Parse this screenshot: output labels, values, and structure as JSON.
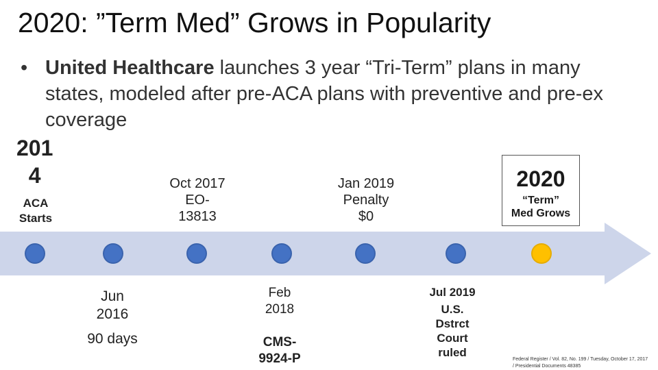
{
  "title": "2020: ”Term Med” Grows in Popularity",
  "bullet": {
    "bold": "United Healthcare",
    "rest": " launches 3 year “Tri-Term” plans in many states, modeled after pre-ACA plans with preventive and pre-ex coverage"
  },
  "timeline": {
    "y2014": [
      "201",
      "4"
    ],
    "aca_starts": [
      "ACA",
      "Starts"
    ],
    "oct2017": [
      "Oct 2017",
      "EO-",
      "13813"
    ],
    "jan2019": [
      "Jan 2019",
      "Penalty",
      "$0"
    ],
    "y2020": {
      "year": "2020",
      "line1": "“Term”",
      "line2": "Med Grows"
    },
    "jun2016": [
      "Jun",
      "2016",
      "90 days"
    ],
    "feb2018": [
      "Feb",
      "2018",
      "CMS-",
      "9924-P"
    ],
    "jul2019": [
      "Jul 2019",
      "U.S.",
      "Dstrct",
      "Court",
      "ruled"
    ]
  },
  "footnote": "Federal Register / Vol. 82, No. 199 / Tuesday, October 17, 2017 / Presidential Documents 48385",
  "colors": {
    "arrow": "#cdd5ea",
    "node": "#4472c4",
    "highlight": "#ffc000"
  }
}
